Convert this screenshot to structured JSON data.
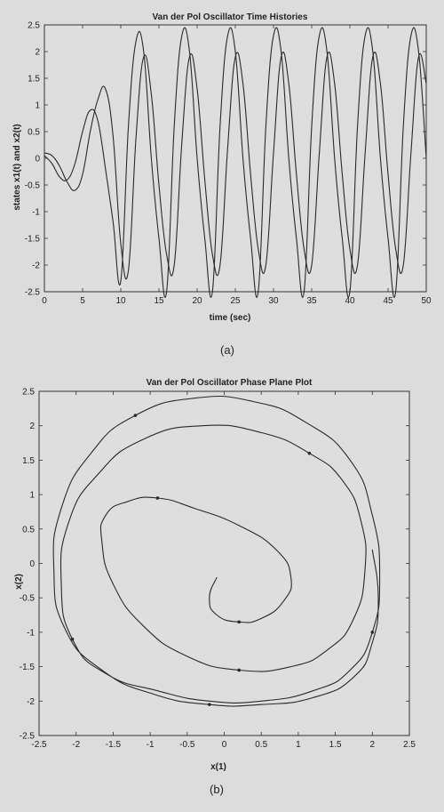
{
  "chart_data": [
    {
      "type": "line",
      "title": "Van der Pol Oscillator Time Histories",
      "xlabel": "time (sec)",
      "ylabel": "states x1(t) and x2(t)",
      "xlim": [
        0,
        50
      ],
      "ylim": [
        -2.5,
        2.5
      ],
      "xticks": [
        0,
        5,
        10,
        15,
        20,
        25,
        30,
        35,
        40,
        45,
        50
      ],
      "yticks": [
        -2.5,
        -2,
        -1.5,
        -1,
        -0.5,
        0,
        0.5,
        1,
        1.5,
        2,
        2.5
      ],
      "grid": false,
      "caption": "(a)",
      "series": [
        {
          "x": [
            0,
            1,
            2,
            3,
            4,
            5,
            6,
            7,
            8,
            9,
            10,
            11,
            12,
            13,
            14,
            15,
            16,
            17,
            18,
            19,
            20,
            21,
            22,
            23,
            24,
            25,
            26,
            27,
            28,
            29,
            30,
            31,
            32,
            33,
            34,
            35,
            36,
            37,
            38,
            39,
            40,
            41,
            42,
            43,
            44,
            45,
            46,
            47,
            48,
            49,
            50
          ],
          "values": [
            0.1,
            0.05,
            -0.15,
            -0.45,
            -0.6,
            -0.3,
            0.5,
            1.1,
            1.3,
            0.4,
            -1.6,
            -2.1,
            0.4,
            1.9,
            1.2,
            -0.5,
            -1.8,
            -2.0,
            0.3,
            1.9,
            1.3,
            -0.4,
            -1.8,
            -2.0,
            0.2,
            1.9,
            1.4,
            -0.3,
            -1.7,
            -2.0,
            0.1,
            1.9,
            1.4,
            -0.3,
            -1.7,
            -2.0,
            0.1,
            1.9,
            1.4,
            -0.3,
            -1.7,
            -2.0,
            0.1,
            1.9,
            1.4,
            -0.3,
            -1.7,
            -2.0,
            0.1,
            1.9,
            1.4
          ]
        },
        {
          "x": [
            0,
            1,
            2,
            3,
            4,
            5,
            6,
            7,
            8,
            9,
            10,
            11,
            12,
            13,
            14,
            15,
            16,
            17,
            18,
            19,
            20,
            21,
            22,
            23,
            24,
            25,
            26,
            27,
            28,
            29,
            30,
            31,
            32,
            33,
            34,
            35,
            36,
            37,
            38,
            39,
            40,
            41,
            42,
            43,
            44,
            45,
            46,
            47,
            48,
            49,
            50
          ],
          "values": [
            0.05,
            -0.1,
            -0.35,
            -0.4,
            -0.1,
            0.5,
            0.9,
            0.7,
            -0.2,
            -1.2,
            -2.3,
            0.6,
            2.2,
            2.0,
            0.0,
            -1.5,
            -2.5,
            0.6,
            2.3,
            2.0,
            0.0,
            -1.5,
            -2.5,
            0.6,
            2.3,
            2.0,
            0.0,
            -1.5,
            -2.5,
            0.6,
            2.3,
            2.0,
            0.0,
            -1.5,
            -2.5,
            0.6,
            2.3,
            2.0,
            0.0,
            -1.5,
            -2.5,
            0.6,
            2.3,
            2.0,
            0.0,
            -1.5,
            -2.5,
            0.6,
            2.3,
            2.0,
            0.0
          ]
        }
      ]
    },
    {
      "type": "line",
      "title": "Van der Pol Oscillator Phase Plane Plot",
      "xlabel": "x(1)",
      "ylabel": "x(2)",
      "xlim": [
        -2.5,
        2.5
      ],
      "ylim": [
        -2.5,
        2.5
      ],
      "xticks": [
        -2.5,
        -2,
        -1.5,
        -1,
        -0.5,
        0,
        0.5,
        1,
        1.5,
        2,
        2.5
      ],
      "yticks": [
        -2.5,
        -2,
        -1.5,
        -1,
        -0.5,
        0,
        0.5,
        1,
        1.5,
        2,
        2.5
      ],
      "grid": false,
      "caption": "(b)",
      "series": [
        {
          "x": [
            -0.1,
            -0.2,
            -0.1,
            0.2,
            0.5,
            0.8,
            0.9,
            0.7,
            0.2,
            -0.4,
            -0.9,
            -1.3,
            -1.6,
            -1.65,
            -1.5,
            -1.1,
            -0.5,
            0.2,
            0.9,
            1.4,
            1.75,
            1.9,
            1.85,
            1.6,
            1.15,
            0.5,
            -0.3,
            -1.1,
            -1.7,
            -2.1,
            -2.2,
            -2.05,
            -1.6,
            -0.9,
            -0.2,
            0.5,
            1.2,
            1.7,
            2.0,
            2.1,
            2.0,
            1.7,
            1.1,
            0.4,
            -0.4,
            -1.2,
            -1.8,
            -2.2,
            -2.3,
            -2.15,
            -1.65,
            -0.95,
            -0.2,
            0.5,
            1.2,
            1.75,
            2.0,
            2.08,
            2.0
          ],
          "values": [
            -0.2,
            -0.5,
            -0.75,
            -0.85,
            -0.8,
            -0.55,
            -0.2,
            0.2,
            0.55,
            0.8,
            0.95,
            0.9,
            0.7,
            0.3,
            -0.3,
            -0.9,
            -1.35,
            -1.55,
            -1.5,
            -1.25,
            -0.8,
            -0.1,
            0.6,
            1.2,
            1.6,
            1.9,
            2.0,
            1.8,
            1.3,
            0.6,
            -0.3,
            -1.1,
            -1.6,
            -1.85,
            -2.0,
            -2.0,
            -1.85,
            -1.55,
            -1.0,
            -0.2,
            0.7,
            1.5,
            2.05,
            2.35,
            2.4,
            2.15,
            1.6,
            0.8,
            -0.1,
            -0.95,
            -1.55,
            -1.9,
            -2.05,
            -2.05,
            -1.95,
            -1.65,
            -1.15,
            -0.5,
            0.2
          ]
        }
      ]
    }
  ]
}
